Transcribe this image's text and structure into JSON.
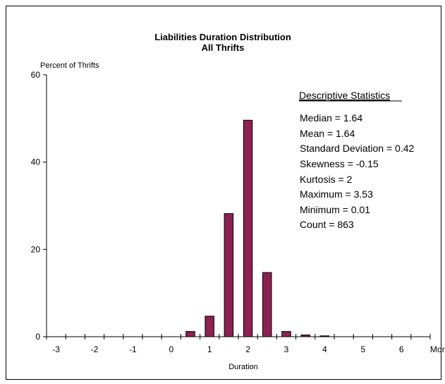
{
  "chart_data": {
    "type": "bar",
    "title": "Liabilities Duration Distribution",
    "subtitle": "All Thrifts",
    "xlabel": "Duration",
    "ylabel": "Percent of Thrifts",
    "ylim": [
      0,
      60
    ],
    "yticks": [
      0,
      20,
      40,
      60
    ],
    "xtick_labels": [
      "-3",
      "-2",
      "-1",
      "0",
      "1",
      "2",
      "3",
      "4",
      "5",
      "6",
      "More"
    ],
    "categories": [
      "-3",
      "-2.5",
      "-2",
      "-1.5",
      "-1",
      "-0.5",
      "0",
      "0.5",
      "1",
      "1.5",
      "2",
      "2.5",
      "3",
      "3.5",
      "4",
      "4.5",
      "5",
      "5.5",
      "6",
      "More"
    ],
    "values": [
      0,
      0,
      0,
      0,
      0,
      0,
      0,
      1.2,
      4.7,
      28.2,
      49.6,
      14.7,
      1.2,
      0.4,
      0.2,
      0,
      0,
      0,
      0,
      0
    ],
    "bar_color": "#8B2252",
    "grid": false,
    "legend": "none"
  },
  "stats": {
    "heading": "Descriptive Statistics",
    "lines": [
      "Median = 1.64",
      "Mean = 1.64",
      "Standard Deviation = 0.42",
      "Skewness = -0.15",
      "Kurtosis = 2",
      "Maximum = 3.53",
      "Minimum = 0.01",
      "Count = 863"
    ]
  }
}
